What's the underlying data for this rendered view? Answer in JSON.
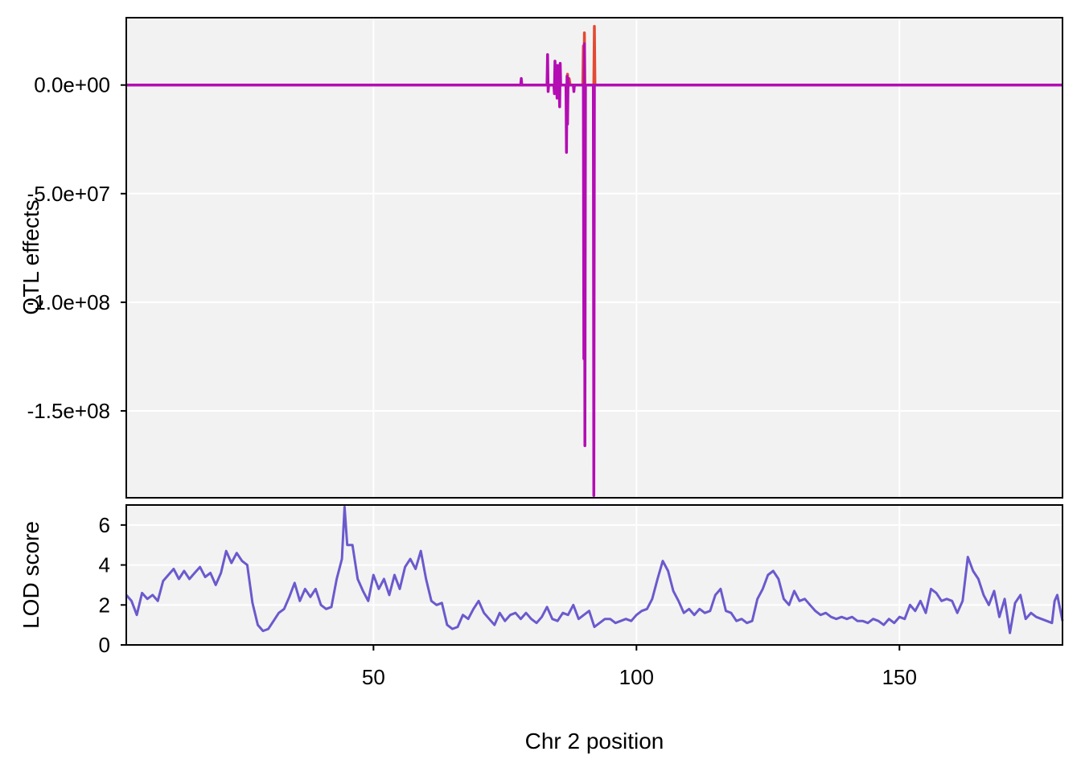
{
  "chart_data": [
    {
      "type": "line",
      "panel": "top",
      "title": "",
      "ylabel": "QTL effects",
      "xlim": [
        3,
        181
      ],
      "ylim": [
        -190000000,
        31000000
      ],
      "yticks": [
        0,
        -50000000,
        -100000000,
        -150000000
      ],
      "ytick_labels": [
        "0.0e+00",
        "-5.0e+07",
        "-1.0e+08",
        "-1.5e+08"
      ],
      "xgrid": [
        50,
        100,
        150
      ],
      "grid": true,
      "series": [
        {
          "color": "#e34a33",
          "points": [
            [
              3,
              0
            ],
            [
              77,
              0
            ],
            [
              86.8,
              0
            ],
            [
              86.9,
              5000000
            ],
            [
              87.0,
              -1000000
            ],
            [
              87.2,
              3000000
            ],
            [
              87.4,
              0
            ],
            [
              89.8,
              0
            ],
            [
              89.9,
              18000000
            ],
            [
              90.0,
              -2000000
            ],
            [
              90.1,
              24000000
            ],
            [
              90.2,
              0
            ],
            [
              91.9,
              0
            ],
            [
              92.0,
              27000000
            ],
            [
              92.1,
              0
            ],
            [
              181,
              0
            ]
          ]
        },
        {
          "color": "#b30db3",
          "points": [
            [
              3,
              0
            ],
            [
              78,
              0
            ],
            [
              78.1,
              3000000
            ],
            [
              78.2,
              0
            ],
            [
              83,
              0
            ],
            [
              83.1,
              14000000
            ],
            [
              83.2,
              -3000000
            ],
            [
              83.3,
              0
            ],
            [
              84.3,
              0
            ],
            [
              84.4,
              -4000000
            ],
            [
              84.5,
              11000000
            ],
            [
              84.6,
              0
            ],
            [
              84.8,
              0
            ],
            [
              84.9,
              -6000000
            ],
            [
              85.0,
              9000000
            ],
            [
              85.1,
              0
            ],
            [
              85.3,
              0
            ],
            [
              85.4,
              -10000000
            ],
            [
              85.5,
              10000000
            ],
            [
              85.6,
              0
            ],
            [
              86.6,
              0
            ],
            [
              86.7,
              -31000000
            ],
            [
              86.8,
              4000000
            ],
            [
              86.9,
              -18000000
            ],
            [
              87.0,
              3000000
            ],
            [
              87.1,
              0
            ],
            [
              88,
              0
            ],
            [
              88.1,
              -3000000
            ],
            [
              88.2,
              0
            ],
            [
              89.9,
              0
            ],
            [
              90.0,
              -126000000
            ],
            [
              90.1,
              19000000
            ],
            [
              90.2,
              -166000000
            ],
            [
              90.3,
              0
            ],
            [
              91.8,
              0
            ],
            [
              91.9,
              -189000000
            ],
            [
              92.0,
              0
            ],
            [
              181,
              0
            ]
          ]
        }
      ]
    },
    {
      "type": "line",
      "panel": "bottom",
      "ylabel": "LOD score",
      "xlabel": "Chr 2 position",
      "xlim": [
        3,
        181
      ],
      "ylim": [
        0,
        7
      ],
      "yticks": [
        0,
        2,
        4,
        6
      ],
      "xticks": [
        50,
        100,
        150
      ],
      "grid": true,
      "series": [
        {
          "color": "#6a5acd",
          "points": [
            [
              3,
              2.5
            ],
            [
              4,
              2.2
            ],
            [
              5,
              1.5
            ],
            [
              6,
              2.6
            ],
            [
              7,
              2.3
            ],
            [
              8,
              2.5
            ],
            [
              9,
              2.2
            ],
            [
              10,
              3.2
            ],
            [
              11,
              3.5
            ],
            [
              12,
              3.8
            ],
            [
              13,
              3.3
            ],
            [
              14,
              3.7
            ],
            [
              15,
              3.3
            ],
            [
              16,
              3.6
            ],
            [
              17,
              3.9
            ],
            [
              18,
              3.4
            ],
            [
              19,
              3.6
            ],
            [
              20,
              3.0
            ],
            [
              21,
              3.6
            ],
            [
              22,
              4.7
            ],
            [
              23,
              4.1
            ],
            [
              24,
              4.6
            ],
            [
              25,
              4.2
            ],
            [
              26,
              4.0
            ],
            [
              27,
              2.1
            ],
            [
              28,
              1.0
            ],
            [
              29,
              0.7
            ],
            [
              30,
              0.8
            ],
            [
              31,
              1.2
            ],
            [
              32,
              1.6
            ],
            [
              33,
              1.8
            ],
            [
              34,
              2.4
            ],
            [
              35,
              3.1
            ],
            [
              36,
              2.2
            ],
            [
              37,
              2.8
            ],
            [
              38,
              2.4
            ],
            [
              39,
              2.8
            ],
            [
              40,
              2.0
            ],
            [
              41,
              1.8
            ],
            [
              42,
              1.9
            ],
            [
              43,
              3.3
            ],
            [
              44,
              4.3
            ],
            [
              44.5,
              6.9
            ],
            [
              45,
              5.0
            ],
            [
              46,
              5.0
            ],
            [
              47,
              3.3
            ],
            [
              48,
              2.7
            ],
            [
              49,
              2.2
            ],
            [
              50,
              3.5
            ],
            [
              51,
              2.8
            ],
            [
              52,
              3.3
            ],
            [
              53,
              2.5
            ],
            [
              54,
              3.5
            ],
            [
              55,
              2.8
            ],
            [
              56,
              3.9
            ],
            [
              57,
              4.3
            ],
            [
              58,
              3.8
            ],
            [
              59,
              4.7
            ],
            [
              60,
              3.3
            ],
            [
              61,
              2.2
            ],
            [
              62,
              2.0
            ],
            [
              63,
              2.1
            ],
            [
              64,
              1.0
            ],
            [
              65,
              0.8
            ],
            [
              66,
              0.9
            ],
            [
              67,
              1.5
            ],
            [
              68,
              1.3
            ],
            [
              69,
              1.8
            ],
            [
              70,
              2.2
            ],
            [
              71,
              1.6
            ],
            [
              72,
              1.3
            ],
            [
              73,
              1.0
            ],
            [
              74,
              1.6
            ],
            [
              75,
              1.2
            ],
            [
              76,
              1.5
            ],
            [
              77,
              1.6
            ],
            [
              78,
              1.3
            ],
            [
              79,
              1.6
            ],
            [
              80,
              1.3
            ],
            [
              81,
              1.1
            ],
            [
              82,
              1.4
            ],
            [
              83,
              1.9
            ],
            [
              84,
              1.3
            ],
            [
              85,
              1.2
            ],
            [
              86,
              1.6
            ],
            [
              87,
              1.5
            ],
            [
              88,
              2.0
            ],
            [
              89,
              1.3
            ],
            [
              90,
              1.5
            ],
            [
              91,
              1.7
            ],
            [
              92,
              0.9
            ],
            [
              93,
              1.1
            ],
            [
              94,
              1.3
            ],
            [
              95,
              1.3
            ],
            [
              96,
              1.1
            ],
            [
              97,
              1.2
            ],
            [
              98,
              1.3
            ],
            [
              99,
              1.2
            ],
            [
              100,
              1.5
            ],
            [
              101,
              1.7
            ],
            [
              102,
              1.8
            ],
            [
              103,
              2.3
            ],
            [
              104,
              3.3
            ],
            [
              105,
              4.2
            ],
            [
              106,
              3.7
            ],
            [
              107,
              2.7
            ],
            [
              108,
              2.2
            ],
            [
              109,
              1.6
            ],
            [
              110,
              1.8
            ],
            [
              111,
              1.5
            ],
            [
              112,
              1.8
            ],
            [
              113,
              1.6
            ],
            [
              114,
              1.7
            ],
            [
              115,
              2.5
            ],
            [
              116,
              2.8
            ],
            [
              117,
              1.7
            ],
            [
              118,
              1.6
            ],
            [
              119,
              1.2
            ],
            [
              120,
              1.3
            ],
            [
              121,
              1.1
            ],
            [
              122,
              1.2
            ],
            [
              123,
              2.3
            ],
            [
              124,
              2.8
            ],
            [
              125,
              3.5
            ],
            [
              126,
              3.7
            ],
            [
              127,
              3.3
            ],
            [
              128,
              2.3
            ],
            [
              129,
              2.0
            ],
            [
              130,
              2.7
            ],
            [
              131,
              2.2
            ],
            [
              132,
              2.3
            ],
            [
              133,
              2.0
            ],
            [
              134,
              1.7
            ],
            [
              135,
              1.5
            ],
            [
              136,
              1.6
            ],
            [
              137,
              1.4
            ],
            [
              138,
              1.3
            ],
            [
              139,
              1.4
            ],
            [
              140,
              1.3
            ],
            [
              141,
              1.4
            ],
            [
              142,
              1.2
            ],
            [
              143,
              1.2
            ],
            [
              144,
              1.1
            ],
            [
              145,
              1.3
            ],
            [
              146,
              1.2
            ],
            [
              147,
              1.0
            ],
            [
              148,
              1.3
            ],
            [
              149,
              1.1
            ],
            [
              150,
              1.4
            ],
            [
              151,
              1.3
            ],
            [
              152,
              2.0
            ],
            [
              153,
              1.7
            ],
            [
              154,
              2.2
            ],
            [
              155,
              1.6
            ],
            [
              156,
              2.8
            ],
            [
              157,
              2.6
            ],
            [
              158,
              2.2
            ],
            [
              159,
              2.3
            ],
            [
              160,
              2.2
            ],
            [
              161,
              1.6
            ],
            [
              162,
              2.2
            ],
            [
              163,
              4.4
            ],
            [
              164,
              3.7
            ],
            [
              165,
              3.3
            ],
            [
              166,
              2.5
            ],
            [
              167,
              2.0
            ],
            [
              168,
              2.7
            ],
            [
              169,
              1.4
            ],
            [
              170,
              2.3
            ],
            [
              171,
              0.6
            ],
            [
              172,
              2.1
            ],
            [
              173,
              2.5
            ],
            [
              174,
              1.3
            ],
            [
              175,
              1.6
            ],
            [
              176,
              1.4
            ],
            [
              177,
              1.3
            ],
            [
              178,
              1.2
            ],
            [
              179,
              1.1
            ],
            [
              179.5,
              2.2
            ],
            [
              180,
              2.5
            ],
            [
              181,
              1.2
            ]
          ]
        }
      ]
    }
  ]
}
